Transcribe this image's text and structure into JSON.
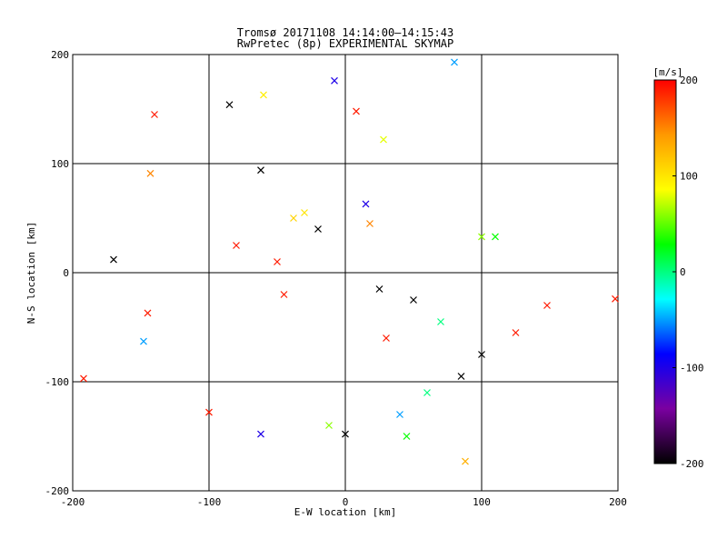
{
  "chart_data": {
    "type": "scatter",
    "title": "Tromsø 20171108 14:14:00–14:15:43",
    "subtitle": "RwPretec (8p) EXPERIMENTAL SKYMAP",
    "xlabel": "E-W location [km]",
    "ylabel": "N-S location [km]",
    "xlim": [
      -200,
      200
    ],
    "ylim": [
      -200,
      200
    ],
    "xticks": [
      "-200",
      "-100",
      "0",
      "100",
      "200"
    ],
    "yticks": [
      "-200",
      "-100",
      "0",
      "100",
      "200"
    ],
    "grid": true,
    "marker_types": [
      "small-plus",
      "large-cross"
    ],
    "colorbar": {
      "unit": "[m/s]",
      "range": [
        -200,
        200
      ],
      "ticks": [
        "200",
        "100",
        "0",
        "-100",
        "-200"
      ],
      "colormap": [
        "#000000",
        "#7a00a0",
        "#0000ff",
        "#00ffff",
        "#00ff00",
        "#ffff00",
        "#ff9900",
        "#ff0000"
      ]
    },
    "series": [
      {
        "marker": "large-cross",
        "points": [
          {
            "x": -140,
            "y": 145,
            "v": 190
          },
          {
            "x": -143,
            "y": 91,
            "v": 150
          },
          {
            "x": -170,
            "y": 12,
            "v": -200
          },
          {
            "x": -85,
            "y": 154,
            "v": -200
          },
          {
            "x": -60,
            "y": 163,
            "v": 95
          },
          {
            "x": -8,
            "y": 176,
            "v": -100
          },
          {
            "x": 8,
            "y": 148,
            "v": 190
          },
          {
            "x": 80,
            "y": 193,
            "v": -50
          },
          {
            "x": 28,
            "y": 122,
            "v": 80
          },
          {
            "x": -62,
            "y": 94,
            "v": -200
          },
          {
            "x": -148,
            "y": -63,
            "v": -50
          },
          {
            "x": -192,
            "y": -97,
            "v": 190
          },
          {
            "x": 198,
            "y": -24,
            "v": 190
          },
          {
            "x": 148,
            "y": -30,
            "v": 190
          },
          {
            "x": 125,
            "y": -55,
            "v": 190
          },
          {
            "x": 100,
            "y": 33,
            "v": 60
          },
          {
            "x": 110,
            "y": 33,
            "v": 30
          },
          {
            "x": 88,
            "y": -173,
            "v": 130
          },
          {
            "x": 45,
            "y": -150,
            "v": 30
          },
          {
            "x": 0,
            "y": -148,
            "v": -200
          },
          {
            "x": -12,
            "y": -140,
            "v": 60
          },
          {
            "x": -62,
            "y": -148,
            "v": -100
          },
          {
            "x": -100,
            "y": -128,
            "v": 190
          },
          {
            "x": -145,
            "y": -37,
            "v": 190
          },
          {
            "x": 40,
            "y": -130,
            "v": -50
          },
          {
            "x": 60,
            "y": -110,
            "v": 0
          },
          {
            "x": 85,
            "y": -95,
            "v": -200
          },
          {
            "x": 100,
            "y": -75,
            "v": -200
          },
          {
            "x": -30,
            "y": 55,
            "v": 100
          },
          {
            "x": -38,
            "y": 50,
            "v": 110
          },
          {
            "x": 15,
            "y": 63,
            "v": -100
          },
          {
            "x": 18,
            "y": 45,
            "v": 150
          },
          {
            "x": -20,
            "y": 40,
            "v": -200
          },
          {
            "x": -50,
            "y": 10,
            "v": 190
          },
          {
            "x": -80,
            "y": 25,
            "v": 190
          },
          {
            "x": 25,
            "y": -15,
            "v": -200
          },
          {
            "x": 50,
            "y": -25,
            "v": -200
          },
          {
            "x": -45,
            "y": -20,
            "v": 190
          },
          {
            "x": 70,
            "y": -45,
            "v": 0
          },
          {
            "x": 30,
            "y": -60,
            "v": 190
          }
        ]
      }
    ]
  }
}
